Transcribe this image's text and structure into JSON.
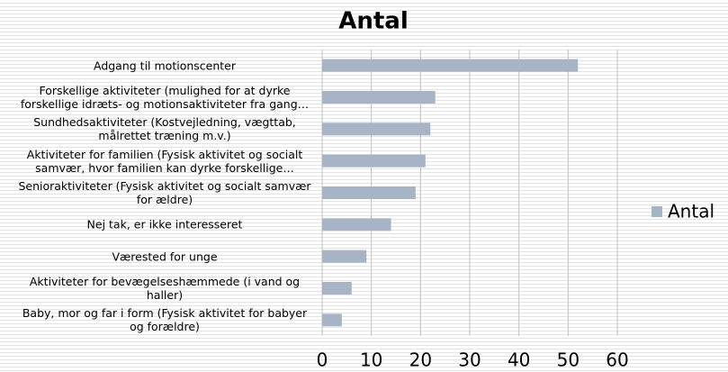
{
  "chart_data": {
    "type": "bar",
    "orientation": "horizontal",
    "title": "Antal",
    "categories": [
      "Adgang til motionscenter",
      "Forskellige aktiviteter (mulighed for at dyrke forskellige idræts- og motionsaktiviteter fra gang…",
      "Sundhedsaktiviteter (Kostvejledning, vægttab, målrettet træning m.v.)",
      "Aktiviteter for familien (Fysisk aktivitet og socialt samvær, hvor familien kan dyrke forskellige…",
      "Senioraktiviteter (Fysisk aktivitet og socialt samvær for ældre)",
      "Nej tak, er ikke interesseret",
      "Værested for unge",
      "Aktiviteter for bevægelseshæmmede (i vand og haller)",
      "Baby, mor og far i form (Fysisk aktivitet for babyer og forældre)"
    ],
    "series": [
      {
        "name": "Antal",
        "color": "#a6b4c6",
        "values": [
          52,
          23,
          22,
          21,
          19,
          14,
          9,
          6,
          4
        ]
      }
    ],
    "xlim": [
      0,
      60
    ],
    "xticks": [
      0,
      10,
      20,
      30,
      40,
      50,
      60
    ],
    "grid": true,
    "legend": "right"
  }
}
